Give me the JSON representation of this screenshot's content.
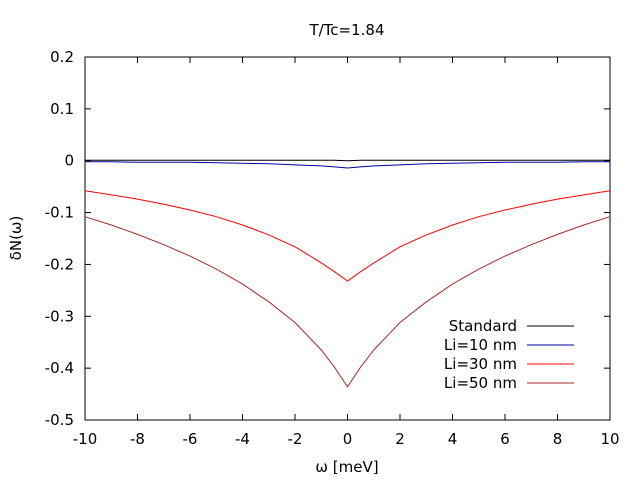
{
  "chart_data": {
    "type": "line",
    "title": "T/Tc=1.84",
    "xlabel": "ω [meV]",
    "ylabel": "δN(ω)",
    "xlim": [
      -10,
      10
    ],
    "ylim": [
      -0.5,
      0.2
    ],
    "grid": false,
    "legend_position": "bottom-right",
    "x_ticks": [
      -10,
      -8,
      -6,
      -4,
      -2,
      0,
      2,
      4,
      6,
      8,
      10
    ],
    "x_tick_labels": [
      "-10",
      "-8",
      "-6",
      "-4",
      "-2",
      "0",
      "2",
      "4",
      "6",
      "8",
      "10"
    ],
    "y_ticks": [
      0.2,
      0.1,
      0,
      -0.1,
      -0.2,
      -0.3,
      -0.4,
      -0.5
    ],
    "y_tick_labels": [
      "0.2",
      "0.1",
      "0",
      "-0.1",
      "-0.2",
      "-0.3",
      "-0.4",
      "-0.5"
    ],
    "x": [
      -10,
      -9,
      -8,
      -7,
      -6,
      -5,
      -4,
      -3,
      -2,
      -1,
      -0.5,
      0,
      0.5,
      1,
      2,
      3,
      4,
      5,
      6,
      7,
      8,
      9,
      10
    ],
    "series": [
      {
        "name": "Standard",
        "color": "#000000",
        "values": [
          0.001,
          0.001,
          0.001,
          0.001,
          0.001,
          0.001,
          0.001,
          0.001,
          0.001,
          0.001,
          0.001,
          0.0,
          0.001,
          0.001,
          0.001,
          0.001,
          0.001,
          0.001,
          0.001,
          0.001,
          0.001,
          0.001,
          0.001
        ]
      },
      {
        "name": "Li=10 nm",
        "color": "#0000a0",
        "values": [
          -0.002,
          -0.002,
          -0.003,
          -0.003,
          -0.003,
          -0.004,
          -0.005,
          -0.006,
          -0.008,
          -0.01,
          -0.012,
          -0.014,
          -0.012,
          -0.01,
          -0.008,
          -0.006,
          -0.005,
          -0.004,
          -0.003,
          -0.003,
          -0.003,
          -0.002,
          -0.002
        ]
      },
      {
        "name": "Li=30 nm",
        "color": "#ff0000",
        "values": [
          -0.058,
          -0.066,
          -0.074,
          -0.084,
          -0.095,
          -0.108,
          -0.124,
          -0.143,
          -0.166,
          -0.197,
          -0.214,
          -0.232,
          -0.214,
          -0.197,
          -0.166,
          -0.143,
          -0.124,
          -0.108,
          -0.095,
          -0.084,
          -0.074,
          -0.066,
          -0.058
        ]
      },
      {
        "name": "Li=50 nm",
        "color": "#a52a2a",
        "values": [
          -0.108,
          -0.124,
          -0.142,
          -0.162,
          -0.184,
          -0.209,
          -0.238,
          -0.272,
          -0.312,
          -0.365,
          -0.398,
          -0.436,
          -0.398,
          -0.365,
          -0.312,
          -0.272,
          -0.238,
          -0.209,
          -0.184,
          -0.162,
          -0.142,
          -0.124,
          -0.108
        ]
      }
    ]
  }
}
